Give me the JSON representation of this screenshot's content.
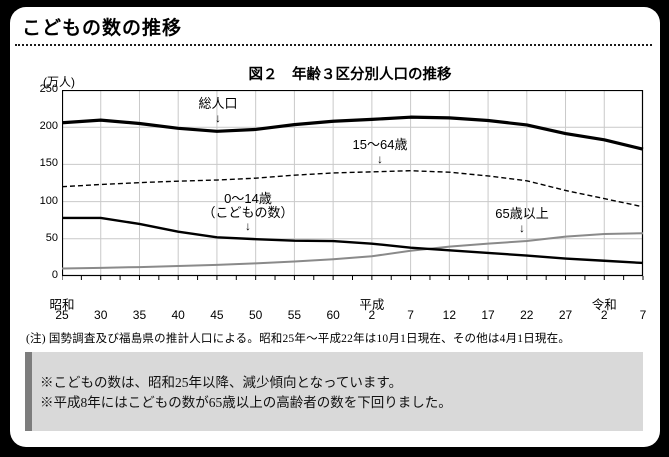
{
  "page": {
    "title": "こどもの数の推移"
  },
  "chart_data": {
    "type": "line",
    "title": "図２　年齢３区分別人口の推移",
    "ylabel": "(万人)",
    "xlabel": "",
    "ylim": [
      0,
      250
    ],
    "y_ticks": [
      250,
      200,
      150,
      100,
      50,
      0
    ],
    "y_gridlines": [
      200,
      150,
      100,
      50
    ],
    "grid": "on",
    "legend_position": "inline-annotations",
    "x_tick_labels": [
      "25",
      "30",
      "35",
      "40",
      "45",
      "50",
      "55",
      "60",
      "2",
      "7",
      "12",
      "17",
      "22",
      "27",
      "2",
      "7"
    ],
    "era_labels": [
      {
        "label": "昭和",
        "tick": 0
      },
      {
        "label": "平成",
        "tick": 8
      },
      {
        "label": "令和",
        "tick": 14
      }
    ],
    "series": [
      {
        "name": "15〜64歳",
        "style": "dashed",
        "color": "#000000",
        "width": 1.4,
        "dash": "5 3",
        "values": [
          120,
          123,
          125.5,
          127.5,
          129,
          131.5,
          135.5,
          138.5,
          140,
          141.5,
          139.5,
          134.5,
          128,
          115,
          104,
          93
        ]
      },
      {
        "name": "65歳以上",
        "style": "solid",
        "color": "#8a8a8a",
        "width": 2,
        "dash": "",
        "values": [
          10,
          11,
          12,
          13.5,
          15,
          17,
          19.5,
          22.5,
          26.5,
          34,
          39.5,
          43.5,
          47,
          53,
          56.5,
          57.5
        ]
      },
      {
        "name": "0〜14歳（こどもの数）",
        "style": "solid",
        "color": "#000000",
        "width": 2.4,
        "dash": "",
        "values": [
          78,
          78,
          70,
          59.5,
          52,
          49.5,
          47.5,
          47,
          43.5,
          38,
          34.5,
          31,
          27.5,
          23.5,
          20.5,
          17.5
        ]
      },
      {
        "name": "総人口",
        "style": "solid-thick",
        "color": "#000000",
        "width": 3.2,
        "dash": "",
        "values": [
          206,
          209.5,
          205,
          198.5,
          194.5,
          197,
          203.5,
          208,
          210.5,
          213.5,
          212.5,
          209,
          203,
          191.5,
          183,
          170.5
        ]
      }
    ],
    "annotations": [
      {
        "label": "総人口",
        "arrow": "↓"
      },
      {
        "label": "15〜64歳",
        "arrow": "↓"
      },
      {
        "label": "0〜14歳",
        "label2": "（こどもの数）",
        "arrow": "↓"
      },
      {
        "label": "65歳以上",
        "arrow": "↓"
      }
    ],
    "colors": {
      "grid": "#c9c9c9",
      "axis": "#000000",
      "elderly_line": "#8a8a8a"
    }
  },
  "note": "(注) 国勢調査及び福島県の推計人口による。昭和25年〜平成22年は10月1日現在、その他は4月1日現在。",
  "summary_box": {
    "lines": [
      "※こどもの数は、昭和25年以降、減少傾向となっています。",
      "※平成8年にはこどもの数が65歳以上の高齢者の数を下回りました。"
    ]
  }
}
